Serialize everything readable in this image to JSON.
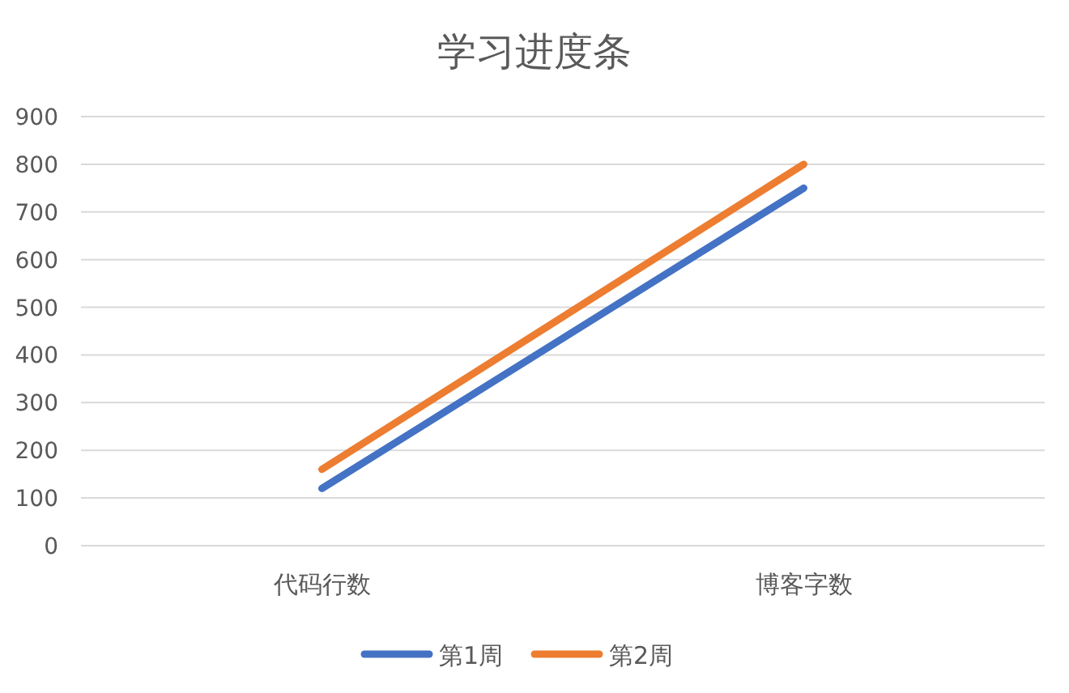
{
  "chart_data": {
    "type": "line",
    "title": "学习进度条",
    "categories": [
      "代码行数",
      "博客字数"
    ],
    "series": [
      {
        "name": "第1周",
        "color": "#4472c4",
        "values": [
          120,
          750
        ]
      },
      {
        "name": "第2周",
        "color": "#ed7d31",
        "values": [
          160,
          800
        ]
      }
    ],
    "ylim": [
      0,
      900
    ],
    "yticks": [
      0,
      100,
      200,
      300,
      400,
      500,
      600,
      700,
      800,
      900
    ],
    "grid": "y",
    "legend": "bottom",
    "marker": "none",
    "line_style": "solid"
  }
}
